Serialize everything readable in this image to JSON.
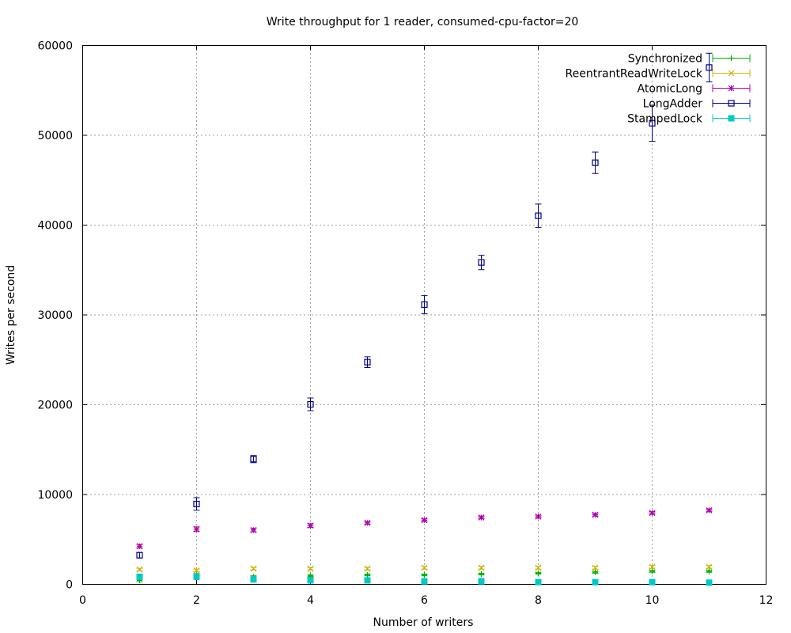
{
  "chart_data": {
    "type": "scatter",
    "title": "Write throughput for 1 reader, consumed-cpu-factor=20",
    "xlabel": "Number of writers",
    "ylabel": "Writes per second",
    "xlim": [
      0,
      12
    ],
    "ylim": [
      0,
      60000
    ],
    "xticks": [
      0,
      2,
      4,
      6,
      8,
      10,
      12
    ],
    "yticks": [
      0,
      10000,
      20000,
      30000,
      40000,
      50000,
      60000
    ],
    "grid": true,
    "legend_position": "top-right",
    "series": [
      {
        "name": "Synchronized",
        "color": "#00b000",
        "marker": "plus",
        "points": [
          {
            "x": 1,
            "y": 400,
            "err": 150
          },
          {
            "x": 2,
            "y": 1000,
            "err": 150
          },
          {
            "x": 3,
            "y": 800,
            "err": 100
          },
          {
            "x": 4,
            "y": 900,
            "err": 100
          },
          {
            "x": 5,
            "y": 1000,
            "err": 100
          },
          {
            "x": 6,
            "y": 1000,
            "err": 100
          },
          {
            "x": 7,
            "y": 1100,
            "err": 100
          },
          {
            "x": 8,
            "y": 1200,
            "err": 100
          },
          {
            "x": 9,
            "y": 1300,
            "err": 100
          },
          {
            "x": 10,
            "y": 1400,
            "err": 100
          },
          {
            "x": 11,
            "y": 1400,
            "err": 100
          }
        ]
      },
      {
        "name": "ReentrantReadWriteLock",
        "color": "#c8b400",
        "marker": "x",
        "points": [
          {
            "x": 1,
            "y": 1600,
            "err": 150
          },
          {
            "x": 2,
            "y": 1500,
            "err": 150
          },
          {
            "x": 3,
            "y": 1700,
            "err": 150
          },
          {
            "x": 4,
            "y": 1700,
            "err": 150
          },
          {
            "x": 5,
            "y": 1700,
            "err": 150
          },
          {
            "x": 6,
            "y": 1800,
            "err": 150
          },
          {
            "x": 7,
            "y": 1800,
            "err": 150
          },
          {
            "x": 8,
            "y": 1800,
            "err": 150
          },
          {
            "x": 9,
            "y": 1800,
            "err": 150
          },
          {
            "x": 10,
            "y": 1900,
            "err": 150
          },
          {
            "x": 11,
            "y": 1900,
            "err": 150
          }
        ]
      },
      {
        "name": "AtomicLong",
        "color": "#b000b0",
        "marker": "star",
        "points": [
          {
            "x": 1,
            "y": 4200,
            "err": 200
          },
          {
            "x": 2,
            "y": 6100,
            "err": 250
          },
          {
            "x": 3,
            "y": 6000,
            "err": 200
          },
          {
            "x": 4,
            "y": 6500,
            "err": 200
          },
          {
            "x": 5,
            "y": 6800,
            "err": 150
          },
          {
            "x": 6,
            "y": 7100,
            "err": 150
          },
          {
            "x": 7,
            "y": 7400,
            "err": 150
          },
          {
            "x": 8,
            "y": 7500,
            "err": 150
          },
          {
            "x": 9,
            "y": 7700,
            "err": 150
          },
          {
            "x": 10,
            "y": 7900,
            "err": 150
          },
          {
            "x": 11,
            "y": 8200,
            "err": 150
          }
        ]
      },
      {
        "name": "LongAdder",
        "color": "#000090",
        "marker": "open-square",
        "points": [
          {
            "x": 1,
            "y": 3200,
            "err": 300
          },
          {
            "x": 2,
            "y": 8900,
            "err": 700
          },
          {
            "x": 3,
            "y": 13900,
            "err": 400
          },
          {
            "x": 4,
            "y": 20000,
            "err": 700
          },
          {
            "x": 5,
            "y": 24700,
            "err": 600
          },
          {
            "x": 6,
            "y": 31100,
            "err": 1000
          },
          {
            "x": 7,
            "y": 35800,
            "err": 800
          },
          {
            "x": 8,
            "y": 41000,
            "err": 1300
          },
          {
            "x": 9,
            "y": 46900,
            "err": 1200
          },
          {
            "x": 10,
            "y": 51300,
            "err": 2000
          },
          {
            "x": 11,
            "y": 57500,
            "err": 1600
          }
        ]
      },
      {
        "name": "StampedLock",
        "color": "#00c8c8",
        "marker": "filled-square",
        "points": [
          {
            "x": 1,
            "y": 800,
            "err": 200
          },
          {
            "x": 2,
            "y": 800,
            "err": 200
          },
          {
            "x": 3,
            "y": 500,
            "err": 150
          },
          {
            "x": 4,
            "y": 400,
            "err": 100
          },
          {
            "x": 5,
            "y": 400,
            "err": 100
          },
          {
            "x": 6,
            "y": 300,
            "err": 80
          },
          {
            "x": 7,
            "y": 300,
            "err": 80
          },
          {
            "x": 8,
            "y": 200,
            "err": 80
          },
          {
            "x": 9,
            "y": 200,
            "err": 80
          },
          {
            "x": 10,
            "y": 200,
            "err": 80
          },
          {
            "x": 11,
            "y": 150,
            "err": 80
          }
        ]
      }
    ]
  }
}
